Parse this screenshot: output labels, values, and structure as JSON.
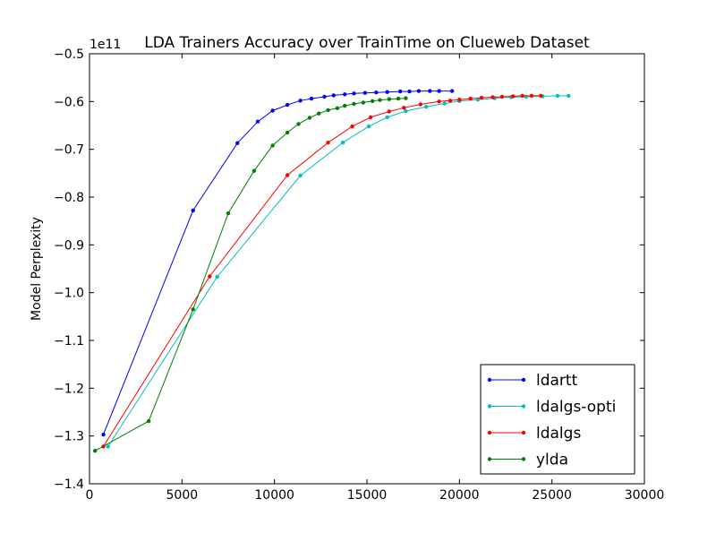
{
  "chart_data": {
    "type": "line",
    "title": "LDA Trainers Accuracy over TrainTime on Clueweb Dataset",
    "xlabel": "",
    "ylabel": "Model Perplexity",
    "y_offset_label": "1e11",
    "xlim": [
      0,
      30000
    ],
    "ylim": [
      -1.4,
      -0.5
    ],
    "x_ticks": [
      0,
      5000,
      10000,
      15000,
      20000,
      25000,
      30000
    ],
    "x_tick_labels": [
      "0",
      "5000",
      "10000",
      "15000",
      "20000",
      "25000",
      "30000"
    ],
    "y_ticks": [
      -1.4,
      -1.3,
      -1.2,
      -1.1,
      -1.0,
      -0.9,
      -0.8,
      -0.7,
      -0.6,
      -0.5
    ],
    "y_tick_labels": [
      "−1.4",
      "−1.3",
      "−1.2",
      "−1.1",
      "−1.0",
      "−0.9",
      "−0.8",
      "−0.7",
      "−0.6",
      "−0.5"
    ],
    "grid": false,
    "legend_position": "lower-right",
    "series": [
      {
        "name": "ldartt",
        "color": "#0000ff",
        "x": [
          750,
          5600,
          8000,
          9100,
          9900,
          10700,
          11400,
          12000,
          12700,
          13200,
          13800,
          14300,
          14900,
          15500,
          16100,
          16800,
          17300,
          17800,
          18400,
          18900,
          19600
        ],
        "y": [
          -1.297,
          -0.828,
          -0.687,
          -0.642,
          -0.619,
          -0.607,
          -0.598,
          -0.594,
          -0.59,
          -0.587,
          -0.585,
          -0.583,
          -0.582,
          -0.581,
          -0.58,
          -0.579,
          -0.579,
          -0.578,
          -0.578,
          -0.578,
          -0.578
        ]
      },
      {
        "name": "ldalgs-opti",
        "color": "#00bfbf",
        "x": [
          1000,
          6900,
          11400,
          13700,
          15100,
          16100,
          17100,
          18200,
          19200,
          20000,
          21000,
          21900,
          22800,
          23600,
          24500,
          25300,
          25900
        ],
        "y": [
          -1.322,
          -0.967,
          -0.755,
          -0.686,
          -0.652,
          -0.633,
          -0.62,
          -0.611,
          -0.604,
          -0.599,
          -0.596,
          -0.593,
          -0.591,
          -0.59,
          -0.589,
          -0.588,
          -0.588
        ]
      },
      {
        "name": "ldalgs",
        "color": "#ff0000",
        "x": [
          750,
          6500,
          10700,
          12900,
          14200,
          15200,
          16200,
          17000,
          17900,
          18900,
          19500,
          20000,
          20600,
          21200,
          21800,
          22300,
          22900,
          23400,
          23900,
          24400
        ],
        "y": [
          -1.322,
          -0.966,
          -0.754,
          -0.686,
          -0.652,
          -0.633,
          -0.621,
          -0.613,
          -0.606,
          -0.6,
          -0.598,
          -0.596,
          -0.594,
          -0.592,
          -0.591,
          -0.59,
          -0.589,
          -0.588,
          -0.588,
          -0.588
        ]
      },
      {
        "name": "ylda",
        "color": "#008000",
        "x": [
          300,
          3200,
          5600,
          7500,
          8900,
          9900,
          10700,
          11300,
          11900,
          12400,
          12900,
          13400,
          13800,
          14300,
          14800,
          15300,
          15700,
          16200,
          16700,
          17100
        ],
        "y": [
          -1.331,
          -1.269,
          -1.035,
          -0.834,
          -0.745,
          -0.692,
          -0.665,
          -0.647,
          -0.634,
          -0.625,
          -0.618,
          -0.614,
          -0.609,
          -0.605,
          -0.602,
          -0.599,
          -0.597,
          -0.595,
          -0.594,
          -0.593
        ]
      }
    ]
  }
}
